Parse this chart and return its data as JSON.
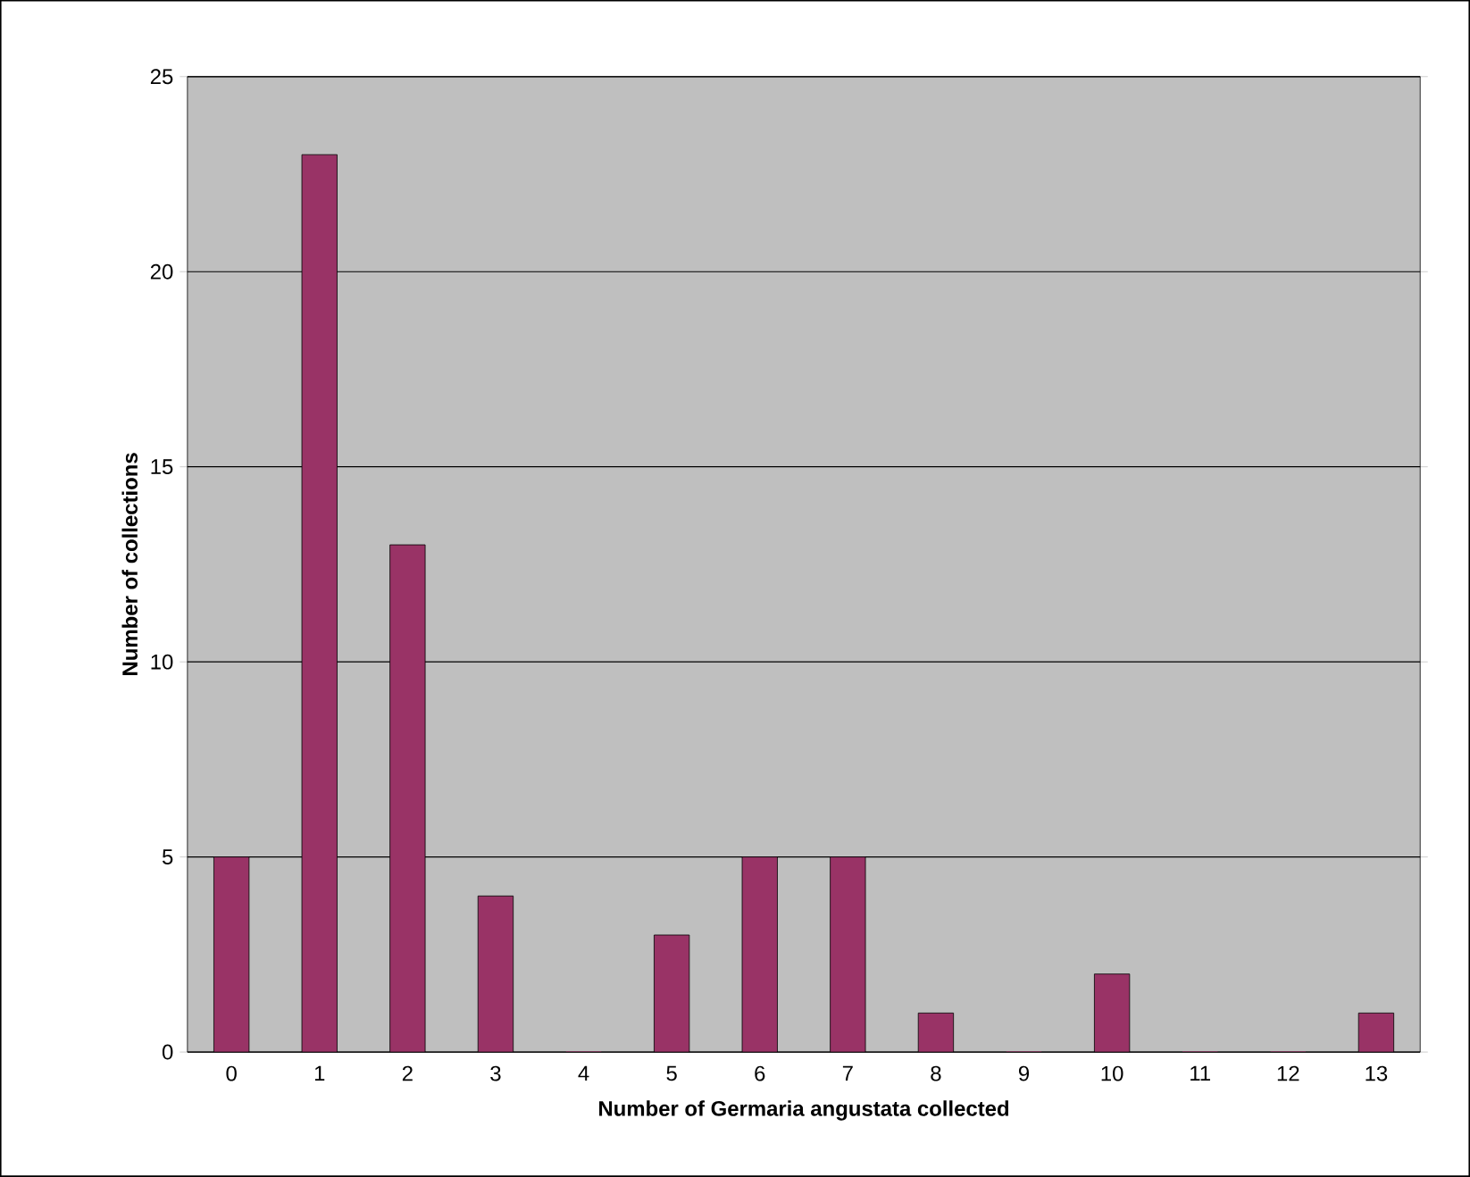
{
  "chart_data": {
    "type": "bar",
    "xlabel": "Number of Germaria angustata collected",
    "ylabel": "Number of collections",
    "categories": [
      "0",
      "1",
      "2",
      "3",
      "4",
      "5",
      "6",
      "7",
      "8",
      "9",
      "10",
      "11",
      "12",
      "13"
    ],
    "values": [
      5,
      23,
      13,
      4,
      0,
      3,
      5,
      5,
      1,
      0,
      2,
      0,
      0,
      1
    ],
    "color": "#993366",
    "ylim": [
      0,
      25
    ],
    "yticks": [
      0,
      5,
      10,
      15,
      20,
      25
    ],
    "grid": "y"
  }
}
